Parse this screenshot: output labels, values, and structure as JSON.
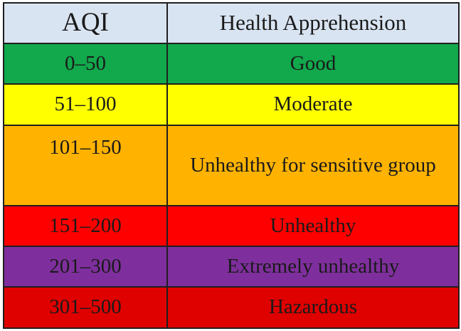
{
  "table": {
    "headers": {
      "aqi": "AQI",
      "health": "Health Apprehension"
    },
    "rows": [
      {
        "range": "0–50",
        "label": "Good",
        "color": "#12a84c"
      },
      {
        "range": "51–100",
        "label": "Moderate",
        "color": "#ffff00"
      },
      {
        "range": "101–150",
        "label": "Unhealthy for sensitive group",
        "color": "#ffb300"
      },
      {
        "range": "151–200",
        "label": "Unhealthy",
        "color": "#ff0000"
      },
      {
        "range": "201–300",
        "label": "Extremely unhealthy",
        "color": "#7f2f9d"
      },
      {
        "range": "301–500",
        "label": "Hazardous",
        "color": "#df0000"
      }
    ],
    "header_color": "#d9e4f2"
  }
}
